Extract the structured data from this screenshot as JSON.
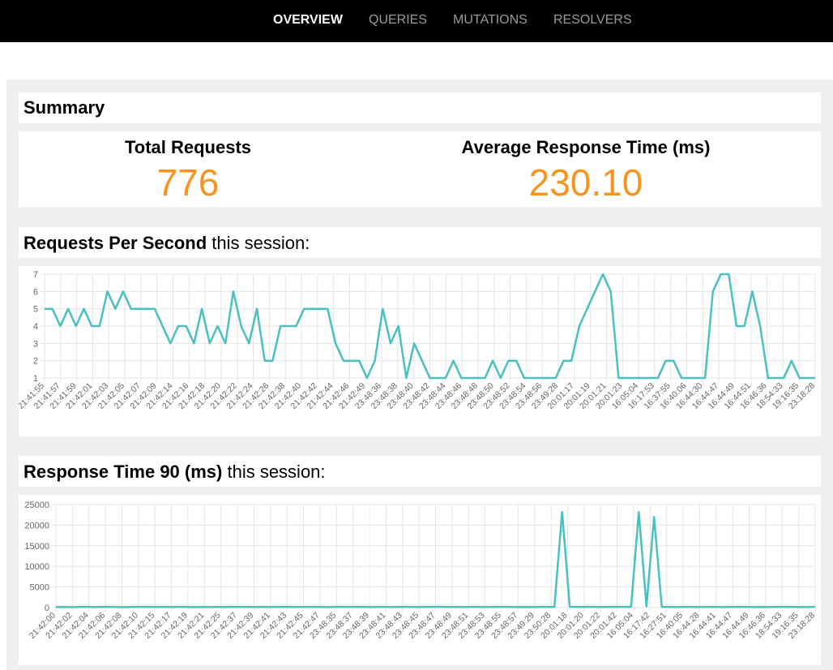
{
  "nav": {
    "items": [
      {
        "label": "OVERVIEW",
        "active": true
      },
      {
        "label": "QUERIES",
        "active": false
      },
      {
        "label": "MUTATIONS",
        "active": false
      },
      {
        "label": "RESOLVERS",
        "active": false
      }
    ]
  },
  "summary": {
    "title": "Summary",
    "total_requests_label": "Total Requests",
    "total_requests_value": "776",
    "avg_response_label": "Average Response Time (ms)",
    "avg_response_value": "230.10"
  },
  "rps_section": {
    "title_bold": "Requests Per Second",
    "title_rest": " this session:"
  },
  "rt_section": {
    "title_bold": "Response Time 90 (ms)",
    "title_rest": " this session:"
  },
  "colors": {
    "accent": "#f7941d",
    "line": "#4bc0c0",
    "grid": "#e5e5e5",
    "panel": "#f0f0f0",
    "nav_bg": "#000000"
  },
  "chart_data": [
    {
      "type": "line",
      "title": "",
      "xlabel": "",
      "ylabel": "",
      "ylim": [
        1,
        7
      ],
      "yticks": [
        1,
        2,
        3,
        4,
        5,
        6,
        7
      ],
      "grid": true,
      "legend": "none",
      "tick_labels": [
        "21:41:55",
        "21:41:57",
        "21:41:59",
        "21:42:01",
        "21:42:03",
        "21:42:05",
        "21:42:07",
        "21:42:09",
        "21:42:14",
        "21:42:16",
        "21:42:18",
        "21:42:20",
        "21:42:22",
        "21:42:24",
        "21:42:26",
        "21:42:38",
        "21:42:40",
        "21:42:42",
        "21:42:44",
        "21:42:46",
        "21:42:49",
        "23:48:36",
        "23:48:38",
        "23:48:40",
        "23:48:42",
        "23:48:44",
        "23:48:46",
        "23:48:48",
        "23:48:50",
        "23:48:52",
        "23:48:54",
        "23:48:56",
        "23:49:28",
        "20:01:17",
        "20:01:19",
        "20:01:21",
        "20:01:23",
        "16:05:04",
        "16:17:53",
        "16:37:55",
        "16:40:06",
        "16:44:30",
        "16:44:47",
        "16:44:49",
        "16:44:51",
        "16:46:36",
        "18:54:33",
        "19:16:35",
        "23:18:28"
      ],
      "values": [
        5,
        5,
        4,
        5,
        4,
        5,
        4,
        4,
        6,
        5,
        6,
        5,
        5,
        5,
        5,
        4,
        3,
        4,
        4,
        3,
        5,
        3,
        4,
        3,
        6,
        4,
        3,
        5,
        2,
        2,
        4,
        4,
        4,
        5,
        5,
        5,
        5,
        3,
        2,
        2,
        2,
        1,
        2,
        5,
        3,
        4,
        1,
        3,
        2,
        1,
        1,
        1,
        2,
        1,
        1,
        1,
        1,
        2,
        1,
        2,
        2,
        1,
        1,
        1,
        1,
        1,
        2,
        2,
        4,
        5,
        6,
        7,
        6,
        1,
        1,
        1,
        1,
        1,
        1,
        2,
        2,
        1,
        1,
        1,
        1,
        6,
        7,
        7,
        4,
        4,
        6,
        4,
        1,
        1,
        1,
        2,
        1,
        1,
        1
      ]
    },
    {
      "type": "line",
      "title": "",
      "xlabel": "",
      "ylabel": "",
      "ylim": [
        0,
        25000
      ],
      "yticks": [
        0,
        5000,
        10000,
        15000,
        20000,
        25000
      ],
      "grid": true,
      "legend": "none",
      "tick_labels": [
        "21:42:00",
        "21:42:02",
        "21:42:04",
        "21:42:06",
        "21:42:08",
        "21:42:10",
        "21:42:15",
        "21:42:17",
        "21:42:19",
        "21:42:21",
        "21:42:25",
        "21:42:37",
        "21:42:39",
        "21:42:41",
        "21:42:43",
        "21:42:45",
        "21:42:47",
        "23:48:35",
        "23:48:37",
        "23:48:39",
        "23:48:41",
        "23:48:43",
        "23:48:45",
        "23:48:47",
        "23:48:49",
        "23:48:51",
        "23:48:53",
        "23:48:55",
        "23:48:57",
        "23:49:29",
        "23:50:28",
        "20:01:18",
        "20:01:20",
        "20:01:22",
        "20:01:42",
        "16:05:04",
        "16:17:42",
        "16:27:51",
        "16:40:05",
        "16:44:28",
        "16:44:41",
        "16:44:47",
        "16:44:49",
        "16:46:36",
        "18:54:33",
        "19:16:35",
        "23:18:28"
      ],
      "values": [
        120,
        150,
        100,
        130,
        180,
        110,
        140,
        160,
        120,
        100,
        150,
        130,
        170,
        110,
        140,
        120,
        160,
        130,
        100,
        150,
        120,
        140,
        110,
        180,
        130,
        160,
        120,
        140,
        110,
        150,
        170,
        120,
        130,
        160,
        140,
        110,
        120,
        180,
        150,
        130,
        140,
        120,
        160,
        130,
        110,
        140,
        150,
        120,
        130,
        160,
        200,
        120,
        140,
        110,
        150,
        130,
        120,
        140,
        160,
        130,
        110,
        150,
        120,
        140,
        130,
        160,
        23200,
        200,
        150,
        130,
        140,
        120,
        160,
        130,
        150,
        140,
        23200,
        300,
        22000,
        150,
        130,
        120,
        160,
        140,
        110,
        150,
        130,
        120,
        140,
        160,
        130,
        110,
        150,
        120,
        140,
        130,
        160,
        120,
        110,
        180
      ]
    }
  ]
}
